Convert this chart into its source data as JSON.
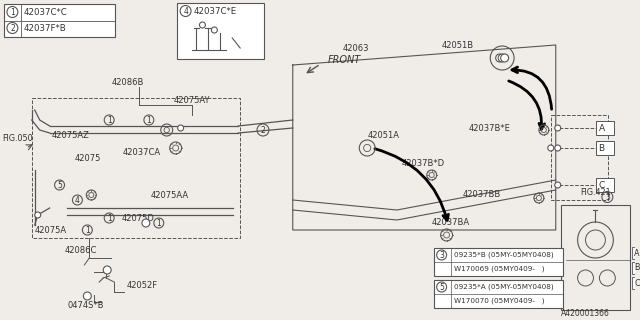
{
  "bg_color": "#f0ede8",
  "lc": "#555555",
  "tc": "#333333",
  "white": "#ffffff",
  "legend": [
    {
      "n": "1",
      "code": "42037C*C"
    },
    {
      "n": "2",
      "code": "42037F*B"
    }
  ],
  "box4": {
    "n": "4",
    "code": "42037C*E"
  },
  "note1": {
    "n": "3",
    "l1": "09235*B (05MY-05MY0408)",
    "l2": "W170069 (05MY0409-   )"
  },
  "note2": {
    "n": "5",
    "l1": "09235*A (05MY-05MY0408)",
    "l2": "W170070 (05MY0409-   )"
  },
  "ref": "A420001366"
}
